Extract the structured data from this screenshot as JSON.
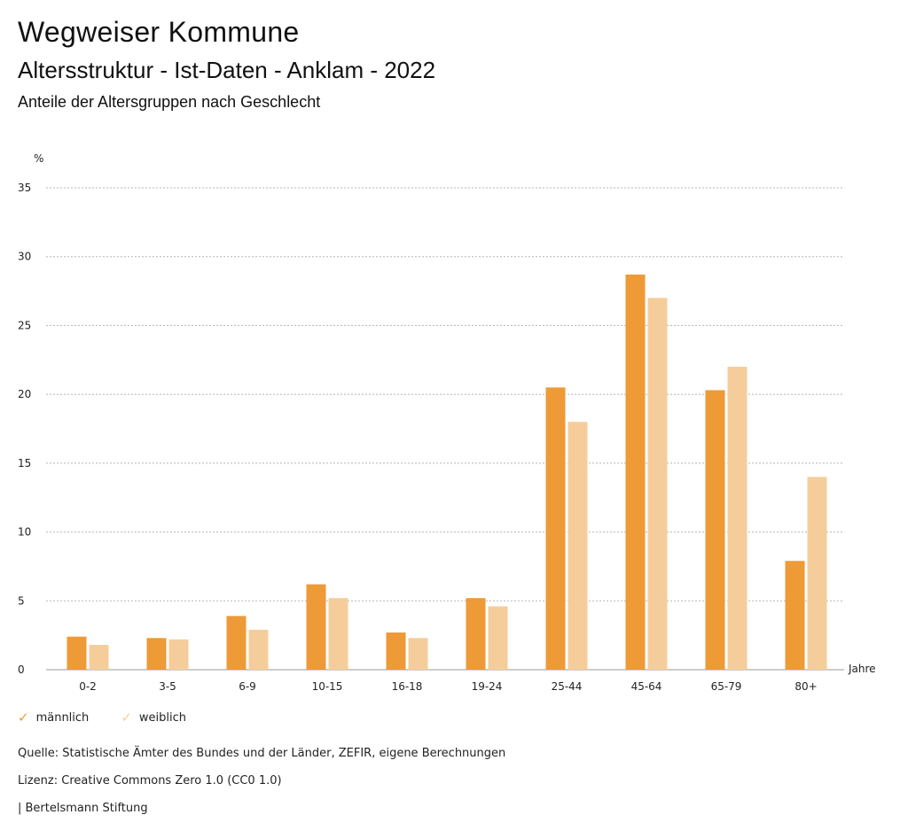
{
  "header": {
    "title": "Wegweiser Kommune",
    "subtitle": "Altersstruktur - Ist-Daten - Anklam - 2022",
    "description": "Anteile der Altersgruppen nach Geschlecht"
  },
  "legend": {
    "items": [
      {
        "label": "männlich",
        "color": "#ed9a37",
        "icon": "check-icon"
      },
      {
        "label": "weiblich",
        "color": "#f5cd9b",
        "icon": "check-icon"
      }
    ]
  },
  "footer": {
    "source": "Quelle: Statistische Ämter des Bundes und der Länder, ZEFIR, eigene Berechnungen",
    "license": "Lizenz: Creative Commons Zero 1.0 (CC0 1.0)",
    "publisher": "| Bertelsmann Stiftung"
  },
  "chart_data": {
    "type": "bar",
    "title": "Anteile der Altersgruppen nach Geschlecht",
    "ylabel": "%",
    "xlabel": "Jahre",
    "ylim": [
      0,
      35
    ],
    "yticks": [
      0,
      5,
      10,
      15,
      20,
      25,
      30,
      35
    ],
    "grid": true,
    "legend_position": "bottom-left",
    "categories": [
      "0-2",
      "3-5",
      "6-9",
      "10-15",
      "16-18",
      "19-24",
      "25-44",
      "45-64",
      "65-79",
      "80+"
    ],
    "series": [
      {
        "name": "männlich",
        "color": "#ed9a37",
        "values": [
          2.4,
          2.3,
          3.9,
          6.2,
          2.7,
          5.2,
          20.5,
          28.7,
          20.3,
          7.9
        ]
      },
      {
        "name": "weiblich",
        "color": "#f5cd9b",
        "values": [
          1.8,
          2.2,
          2.9,
          5.2,
          2.3,
          4.6,
          18.0,
          27.0,
          22.0,
          14.0
        ]
      }
    ]
  }
}
